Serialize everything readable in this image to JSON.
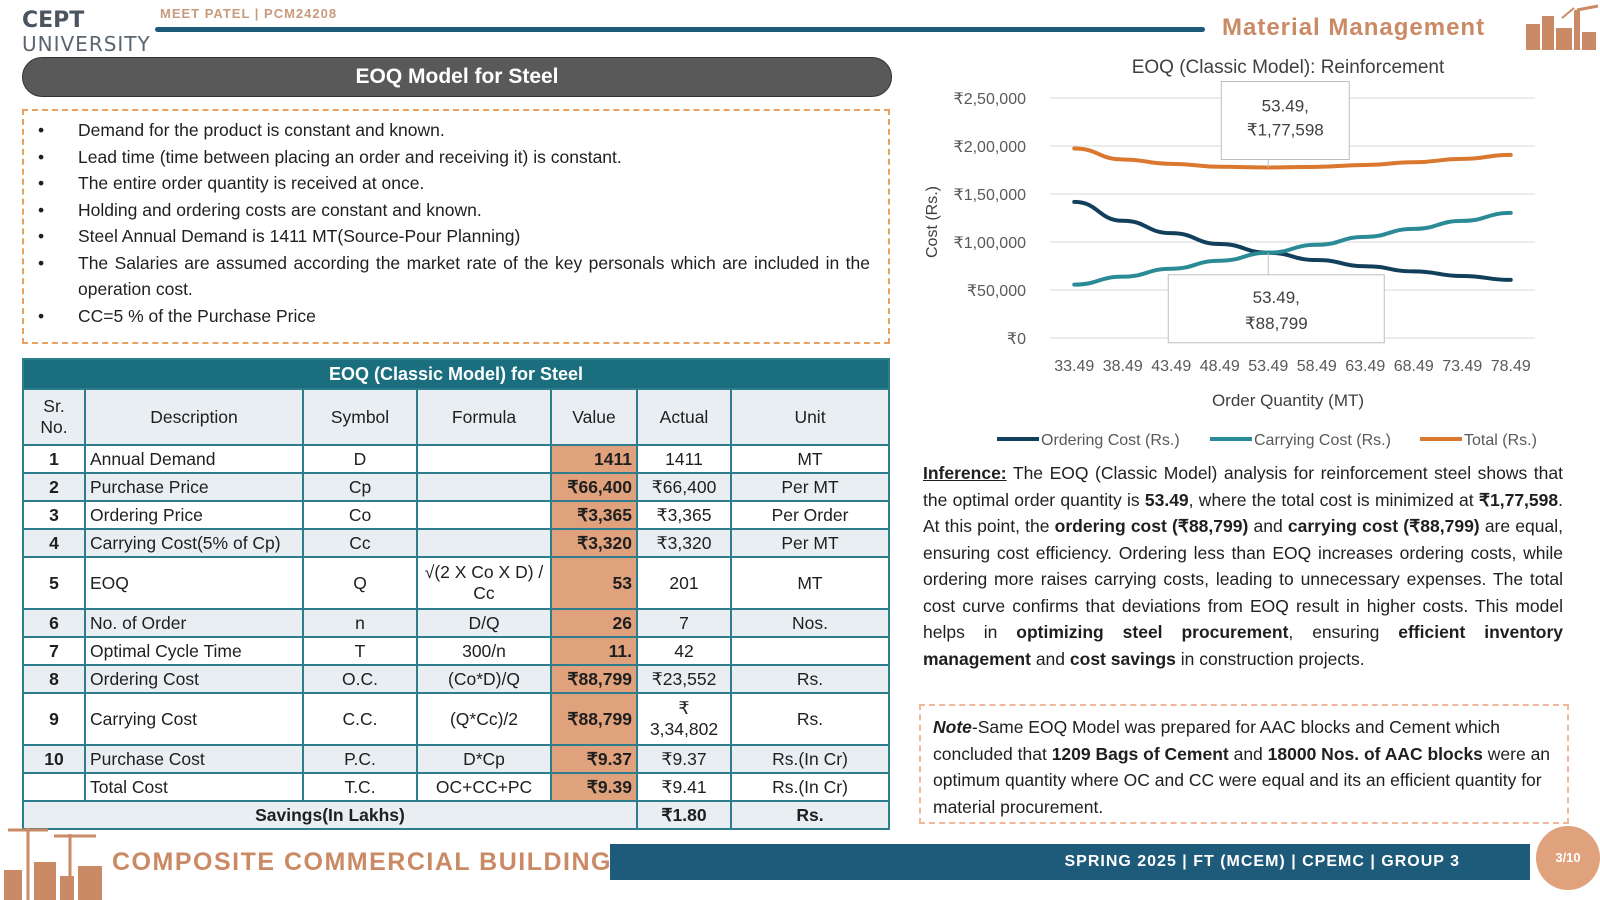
{
  "header": {
    "logo_line1": "CEPT",
    "logo_line2": "UNIVERSITY",
    "author": "MEET PATEL | PCM24208",
    "section_title": "Material Management"
  },
  "title": "EOQ Model for Steel",
  "bullets": [
    "Demand for the product is constant and known.",
    "Lead time (time between placing an order and receiving it) is constant.",
    "The entire order quantity is received at once.",
    "Holding and ordering costs are constant and known.",
    "Steel Annual Demand is 1411 MT(Source-Pour Planning)",
    "The Salaries are assumed according the market rate of the key personals which are included in the operation cost.",
    "CC=5 % of the Purchase Price"
  ],
  "table": {
    "title": "EOQ (Classic Model) for Steel",
    "headers": [
      "Sr. No.",
      "Description",
      "Symbol",
      "Formula",
      "Value",
      "Actual",
      "Unit"
    ],
    "rows": [
      {
        "sr": "1",
        "desc": "Annual Demand",
        "symbol": "D",
        "formula": "",
        "value": "1411",
        "actual": "1411",
        "unit": "MT"
      },
      {
        "sr": "2",
        "desc": "Purchase Price",
        "symbol": "Cp",
        "formula": "",
        "value": "₹66,400",
        "actual": "₹66,400",
        "unit": "Per MT"
      },
      {
        "sr": "3",
        "desc": "Ordering Price",
        "symbol": "Co",
        "formula": "",
        "value": "₹3,365",
        "actual": "₹3,365",
        "unit": "Per Order"
      },
      {
        "sr": "4",
        "desc": "Carrying Cost(5% of Cp)",
        "symbol": "Cc",
        "formula": "",
        "value": "₹3,320",
        "actual": "₹3,320",
        "unit": "Per MT"
      },
      {
        "sr": "5",
        "desc": "EOQ",
        "symbol": "Q",
        "formula": "√(2 X Co X D) / Cc",
        "value": "53",
        "actual": "201",
        "unit": "MT"
      },
      {
        "sr": "6",
        "desc": "No. of Order",
        "symbol": "n",
        "formula": "D/Q",
        "value": "26",
        "actual": "7",
        "unit": "Nos."
      },
      {
        "sr": "7",
        "desc": "Optimal Cycle Time",
        "symbol": "T",
        "formula": "300/n",
        "value": "11.",
        "actual": "42",
        "unit": ""
      },
      {
        "sr": "8",
        "desc": "Ordering Cost",
        "symbol": "O.C.",
        "formula": "(Co*D)/Q",
        "value": "₹88,799",
        "actual": "₹23,552",
        "unit": "Rs."
      },
      {
        "sr": "9",
        "desc": "Carrying Cost",
        "symbol": "C.C.",
        "formula": "(Q*Cc)/2",
        "value": "₹88,799",
        "actual": "₹ 3,34,802",
        "unit": "Rs."
      },
      {
        "sr": "10",
        "desc": "Purchase Cost",
        "symbol": "P.C.",
        "formula": "D*Cp",
        "value": "₹9.37",
        "actual": "₹9.37",
        "unit": "Rs.(In Cr)"
      },
      {
        "sr": "",
        "desc": "Total Cost",
        "symbol": "T.C.",
        "formula": "OC+CC+PC",
        "value": "₹9.39",
        "actual": "₹9.41",
        "unit": "Rs.(In Cr)"
      }
    ],
    "savings_label": "Savings(In Lakhs)",
    "savings_value": "₹1.80",
    "savings_unit": "Rs."
  },
  "chart_data": {
    "type": "line",
    "title": "EOQ (Classic Model): Reinforcement",
    "xlabel": "Order Quantity (MT)",
    "ylabel": "Cost (Rs.)",
    "categories": [
      "33.49",
      "38.49",
      "43.49",
      "48.49",
      "53.49",
      "58.49",
      "63.49",
      "68.49",
      "73.49",
      "78.49"
    ],
    "y_tick_labels": [
      "₹0",
      "₹50,000",
      "₹1,00,000",
      "₹1,50,000",
      "₹2,00,000",
      "₹2,50,000"
    ],
    "ylim": [
      0,
      250000
    ],
    "grid": true,
    "legend_position": "bottom",
    "series": [
      {
        "name": "Ordering Cost (Rs.)",
        "color": "#123f5c",
        "values": [
          141800,
          122100,
          109200,
          97900,
          88799,
          81200,
          74800,
          69400,
          64600,
          60500
        ]
      },
      {
        "name": "Carrying Cost (Rs.)",
        "color": "#2a8a96",
        "values": [
          55600,
          63900,
          72200,
          80500,
          88799,
          97100,
          105400,
          113700,
          122000,
          130300
        ]
      },
      {
        "name": "Total (Rs.)",
        "color": "#d9782e",
        "values": [
          197400,
          186000,
          181400,
          178400,
          177598,
          178300,
          180200,
          183100,
          186600,
          190800
        ]
      }
    ],
    "annotations": [
      {
        "line1": "53.49,",
        "line2": "₹1,77,598"
      },
      {
        "line1": "53.49,",
        "line2": "₹88,799"
      }
    ]
  },
  "inference": {
    "label": "Inference:",
    "t1": " The EOQ (Classic Model) analysis for reinforcement steel shows that the optimal order quantity is ",
    "b1": "53.49",
    "t2": ", where the total cost is minimized at ",
    "b2": "₹1,77,598",
    "t3": ". At this point, the ",
    "b3": "ordering cost (₹88,799)",
    "t4": " and ",
    "b4": "carrying cost (₹88,799)",
    "t5": " are equal, ensuring cost efficiency. Ordering less than EOQ increases ordering costs, while ordering more raises carrying costs, leading to unnecessary expenses. The total cost curve confirms that deviations from EOQ result in higher costs. This model helps in ",
    "b5": "optimizing steel procurement",
    "t6": ", ensuring ",
    "b6": "efficient inventory management",
    "t7": " and ",
    "b7": "cost savings",
    "t8": " in construction projects."
  },
  "note": {
    "label": "Note",
    "t1": "-Same EOQ Model was prepared for AAC blocks and Cement which concluded that ",
    "b1": "1209 Bags of Cement",
    "t2": " and ",
    "b2": "18000 Nos. of AAC blocks",
    "t3": " were an optimum quantity where OC and CC were equal and its an efficient quantity for material procurement."
  },
  "footer": {
    "title": "COMPOSITE COMMERCIAL BUILDING",
    "bar_text": "SPRING 2025 | FT (MCEM) | CPEMC | GROUP 3",
    "page": "3/10"
  },
  "colors": {
    "accent_teal": "#1a6e7e",
    "accent_navy": "#1e5a7a",
    "accent_copper": "#c98a65",
    "value_fill": "#e0a27d"
  }
}
